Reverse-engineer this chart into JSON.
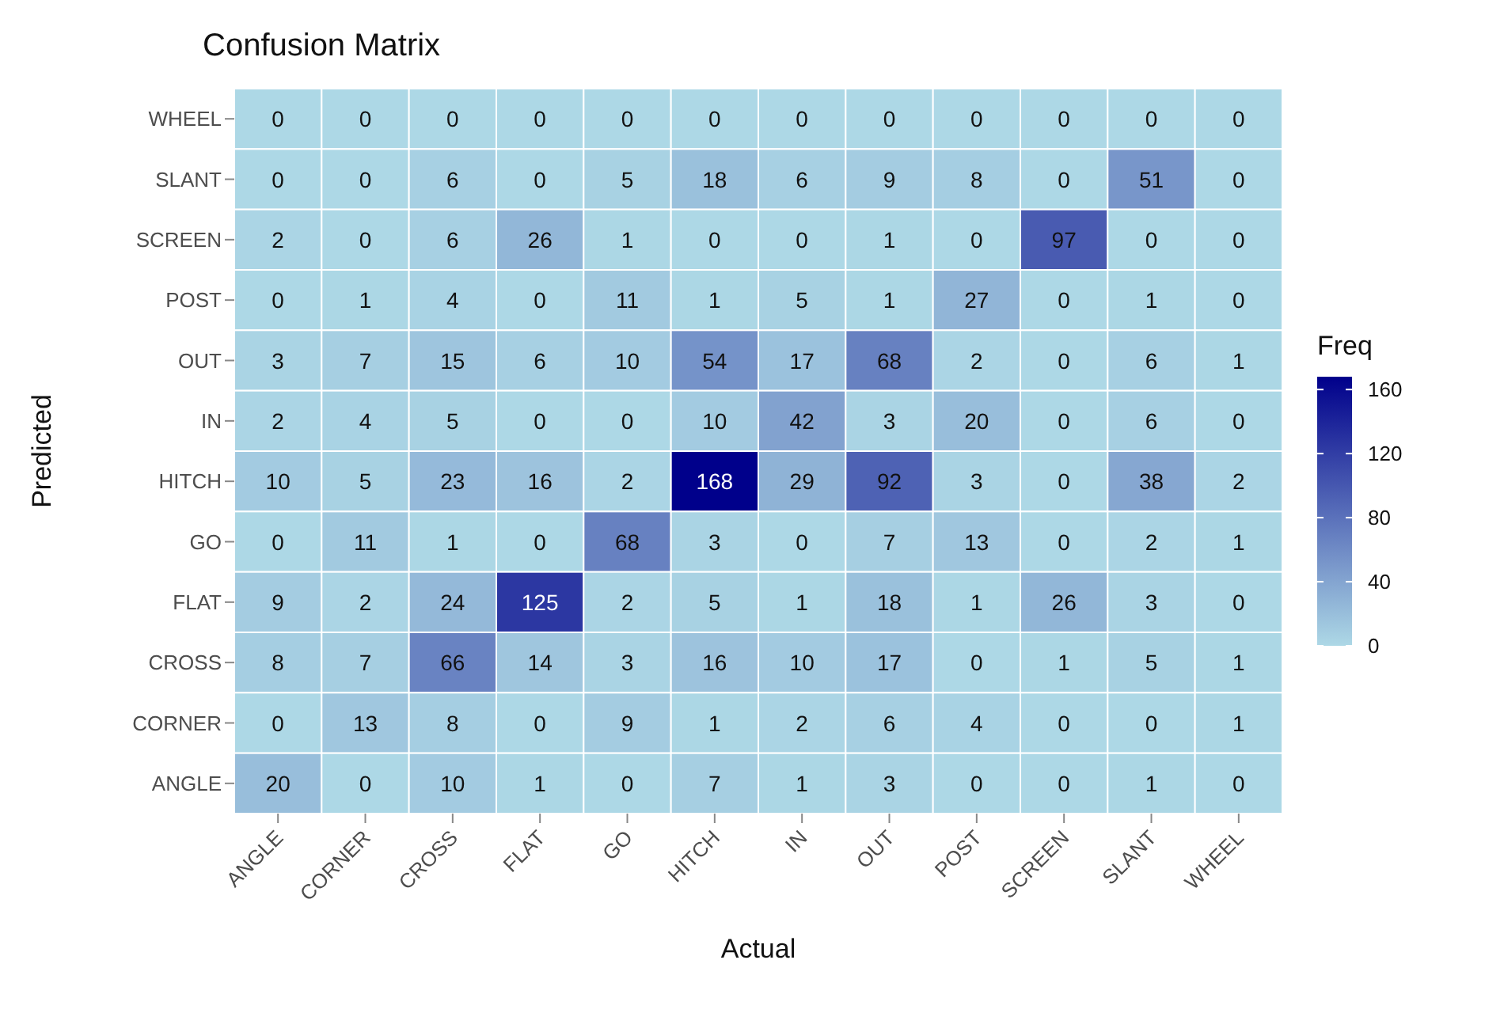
{
  "chart_data": {
    "type": "heatmap",
    "title": "Confusion Matrix",
    "xlabel": "Actual",
    "ylabel": "Predicted",
    "clabel": "Freq",
    "categories": [
      "ANGLE",
      "CORNER",
      "CROSS",
      "FLAT",
      "GO",
      "HITCH",
      "IN",
      "OUT",
      "POST",
      "SCREEN",
      "SLANT",
      "WHEEL"
    ],
    "y_categories": [
      "WHEEL",
      "SLANT",
      "SCREEN",
      "POST",
      "OUT",
      "IN",
      "HITCH",
      "GO",
      "FLAT",
      "CROSS",
      "CORNER",
      "ANGLE"
    ],
    "cells": [
      [
        0,
        0,
        0,
        0,
        0,
        0,
        0,
        0,
        0,
        0,
        0,
        0
      ],
      [
        0,
        0,
        6,
        0,
        5,
        18,
        6,
        9,
        8,
        0,
        51,
        0
      ],
      [
        2,
        0,
        6,
        26,
        1,
        0,
        0,
        1,
        0,
        97,
        0,
        0
      ],
      [
        0,
        1,
        4,
        0,
        11,
        1,
        5,
        1,
        27,
        0,
        1,
        0
      ],
      [
        3,
        7,
        15,
        6,
        10,
        54,
        17,
        68,
        2,
        0,
        6,
        1
      ],
      [
        2,
        4,
        5,
        0,
        0,
        10,
        42,
        3,
        20,
        0,
        6,
        0
      ],
      [
        10,
        5,
        23,
        16,
        2,
        168,
        29,
        92,
        3,
        0,
        38,
        2
      ],
      [
        0,
        11,
        1,
        0,
        68,
        3,
        0,
        7,
        13,
        0,
        2,
        1
      ],
      [
        9,
        2,
        24,
        125,
        2,
        5,
        1,
        18,
        1,
        26,
        3,
        0
      ],
      [
        8,
        7,
        66,
        14,
        3,
        16,
        10,
        17,
        0,
        1,
        5,
        1
      ],
      [
        0,
        13,
        8,
        0,
        9,
        1,
        2,
        6,
        4,
        0,
        0,
        1
      ],
      [
        20,
        0,
        10,
        1,
        0,
        7,
        1,
        3,
        0,
        0,
        1,
        0
      ]
    ],
    "data_labels": true,
    "clim": [
      0,
      168
    ],
    "cticks": [
      0,
      40,
      80,
      120,
      160
    ]
  }
}
